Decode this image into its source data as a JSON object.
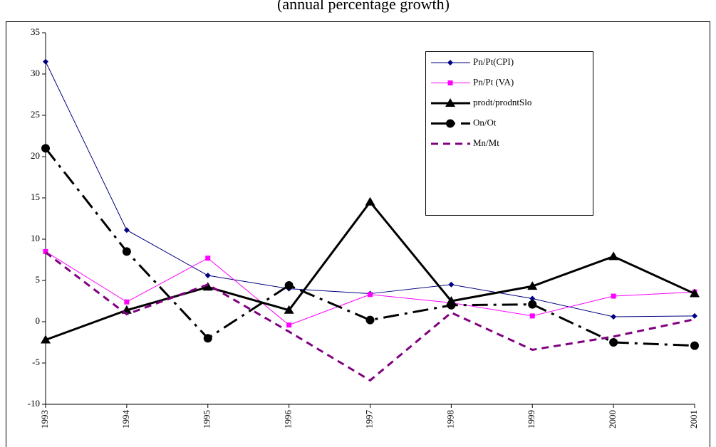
{
  "chart_data": {
    "type": "line",
    "subtitle": "(annual percentage growth)",
    "categories": [
      "1993",
      "1994",
      "1995",
      "1996",
      "1997",
      "1998",
      "1999",
      "2000",
      "2001"
    ],
    "ylim": [
      -10,
      35
    ],
    "yticks": [
      -10,
      -5,
      0,
      5,
      10,
      15,
      20,
      25,
      30,
      35
    ],
    "series": [
      {
        "name": "Pn/Pt(CPI)",
        "color": "#000080",
        "marker": "diamond",
        "width": 1,
        "dash": "none",
        "values": [
          31.5,
          11.1,
          5.6,
          4.0,
          3.4,
          4.5,
          2.8,
          0.6,
          0.7
        ]
      },
      {
        "name": "Pn/Pt (VA)",
        "color": "#ff00ff",
        "marker": "square",
        "width": 1,
        "dash": "none",
        "values": [
          8.5,
          2.4,
          7.7,
          -0.4,
          3.3,
          2.3,
          0.7,
          3.1,
          3.6
        ]
      },
      {
        "name": "prodt/prodntSlo",
        "color": "#000000",
        "marker": "triangle",
        "width": 3,
        "dash": "none",
        "values": [
          -2.2,
          1.4,
          4.2,
          1.4,
          14.5,
          2.5,
          4.3,
          7.9,
          3.4
        ]
      },
      {
        "name": "On/Ot",
        "color": "#000000",
        "marker": "circle",
        "width": 3,
        "dash": "22 8 4 8",
        "values": [
          21,
          8.5,
          -2,
          4.4,
          0.2,
          2.0,
          2.1,
          -2.5,
          -2.9
        ]
      },
      {
        "name": "Mn/Mt",
        "color": "#800080",
        "marker": "none",
        "width": 3,
        "dash": "10 7",
        "values": [
          8.4,
          0.9,
          4.5,
          -1.2,
          -7.1,
          1.1,
          -3.4,
          -1.8,
          0.3
        ]
      }
    ]
  }
}
